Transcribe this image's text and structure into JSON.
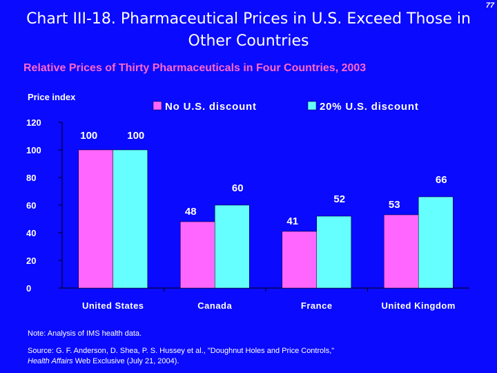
{
  "page_number": "77",
  "slide_title": {
    "line1": "Chart III-18. Pharmaceutical Prices in U.S. Exceed Those in",
    "line2": "Other Countries"
  },
  "note": "Note: Analysis of IMS health data.",
  "source": {
    "prefix": "Source: G. F. Anderson, D. Shea, P. S. Hussey et al., \"Doughnut Holes and Price Controls,\"",
    "journal": "Health Affairs",
    "suffix": "Web Exclusive (July 21, 2004)."
  },
  "colors": {
    "background": "#0a0aff",
    "series1": "#ff66ff",
    "series2": "#66ffff",
    "title": "#ff66cc",
    "text": "#ffffff"
  },
  "chart_data": {
    "type": "bar",
    "title": "Relative Prices of Thirty Pharmaceuticals in Four Countries, 2003",
    "ylabel": "Price index",
    "xlabel": "",
    "categories": [
      "United States",
      "Canada",
      "France",
      "United Kingdom"
    ],
    "series": [
      {
        "name": "No U.S. discount",
        "values": [
          100,
          48,
          41,
          53
        ]
      },
      {
        "name": "20% U.S. discount",
        "values": [
          100,
          60,
          52,
          66
        ]
      }
    ],
    "ylim": [
      0,
      120
    ],
    "yticks": [
      0,
      20,
      40,
      60,
      80,
      100,
      120
    ],
    "grid": false,
    "legend": "top"
  }
}
